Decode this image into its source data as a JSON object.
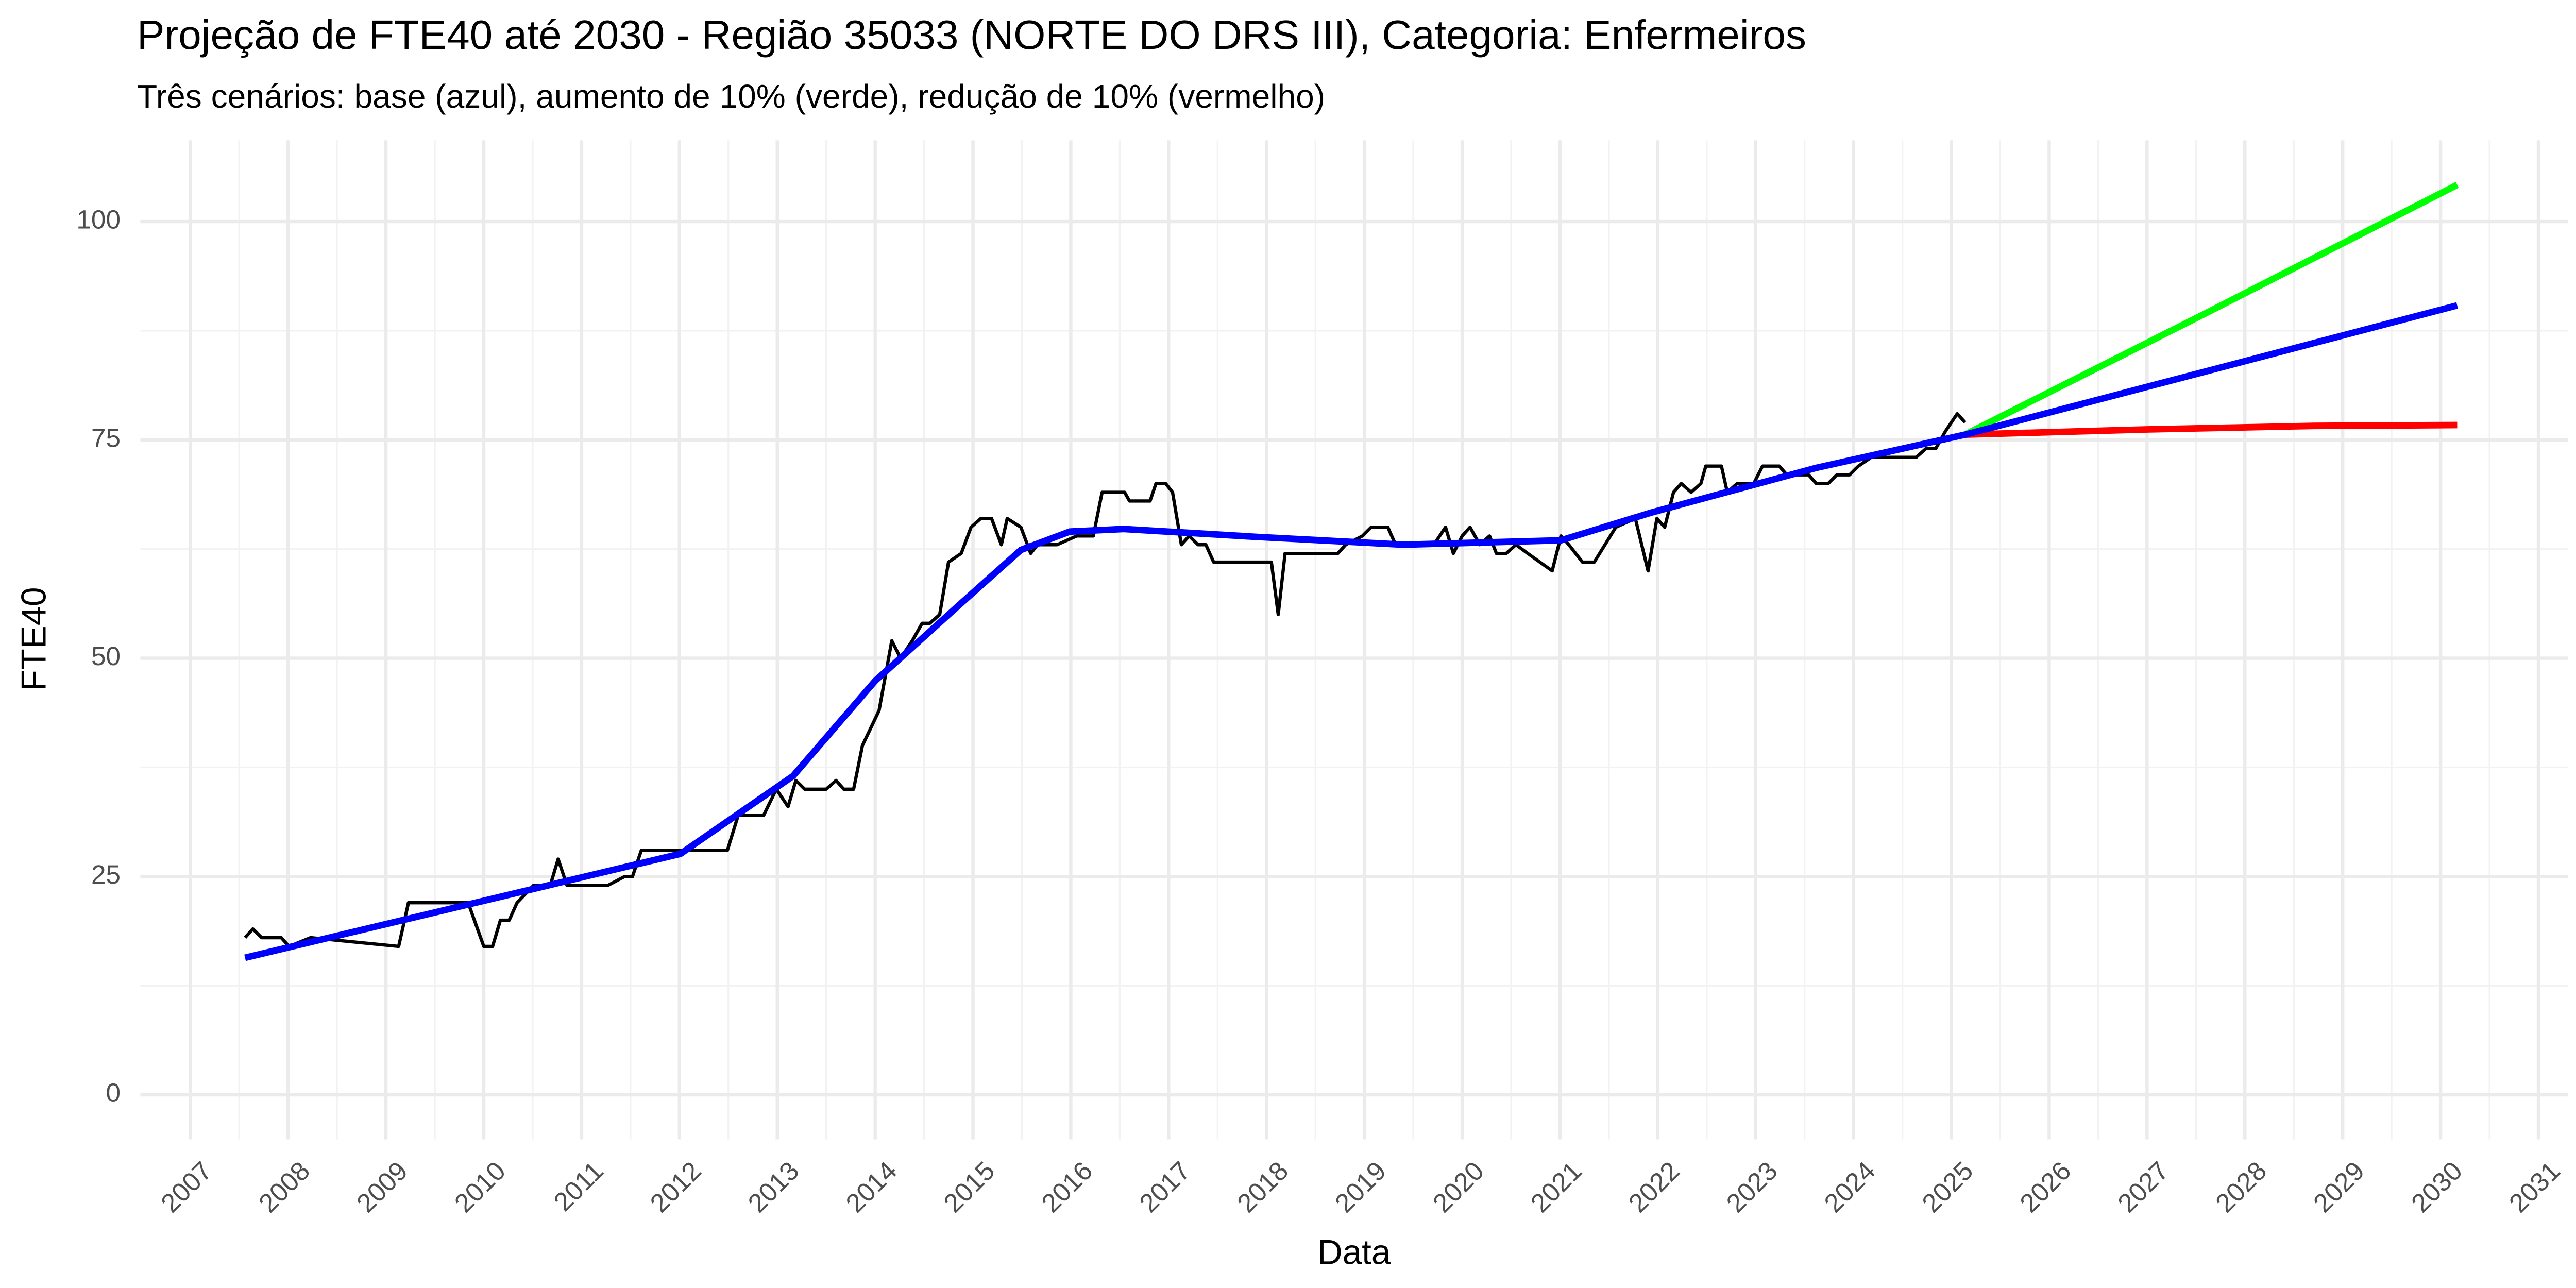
{
  "chart_data": {
    "type": "line",
    "title": "Projeção de FTE40 até 2030 - Região 35033 (NORTE DO DRS III), Categoria: Enfermeiros",
    "subtitle": "Três cenários: base (azul), aumento de 10% (verde), redução de 10% (vermelho)",
    "x_label": "Data",
    "y_label": "FTE40",
    "xlim": [
      2006.49,
      2031.3
    ],
    "ylim": [
      -5.1,
      109.3
    ],
    "xticks": [
      2007,
      2008,
      2009,
      2010,
      2011,
      2012,
      2013,
      2014,
      2015,
      2016,
      2017,
      2018,
      2019,
      2020,
      2021,
      2022,
      2023,
      2024,
      2025,
      2026,
      2027,
      2028,
      2029,
      2030,
      2031
    ],
    "yticks": [
      0,
      25,
      50,
      75,
      100
    ],
    "grid": true,
    "series": [
      {
        "color": "#000000",
        "line_width": 2,
        "x": [
          2007.56,
          2007.64,
          2007.73,
          2007.93,
          2008.01,
          2008.23,
          2009.13,
          2009.23,
          2009.84,
          2010.0,
          2010.09,
          2010.17,
          2010.26,
          2010.34,
          2010.51,
          2010.68,
          2010.76,
          2010.85,
          2011.27,
          2011.44,
          2011.52,
          2011.61,
          2012.49,
          2012.6,
          2012.86,
          2012.99,
          2013.11,
          2013.19,
          2013.28,
          2013.5,
          2013.6,
          2013.68,
          2013.78,
          2013.87,
          2014.04,
          2014.17,
          2014.26,
          2014.38,
          2014.48,
          2014.56,
          2014.66,
          2014.75,
          2014.88,
          2014.98,
          2015.08,
          2015.19,
          2015.29,
          2015.35,
          2015.49,
          2015.59,
          2015.66,
          2015.86,
          2016.06,
          2016.23,
          2016.32,
          2016.55,
          2016.6,
          2016.81,
          2016.87,
          2016.97,
          2017.04,
          2017.13,
          2017.21,
          2017.3,
          2017.38,
          2017.46,
          2018.05,
          2018.12,
          2018.19,
          2018.73,
          2018.81,
          2018.98,
          2019.07,
          2019.24,
          2019.32,
          2019.71,
          2019.83,
          2019.91,
          2020.0,
          2020.08,
          2020.18,
          2020.28,
          2020.35,
          2020.45,
          2020.55,
          2020.67,
          2020.92,
          2021.01,
          2021.09,
          2021.23,
          2021.35,
          2021.46,
          2021.57,
          2021.77,
          2021.9,
          2021.99,
          2022.07,
          2022.16,
          2022.24,
          2022.34,
          2022.44,
          2022.49,
          2022.65,
          2022.71,
          2022.81,
          2022.98,
          2023.07,
          2023.24,
          2023.32,
          2023.54,
          2023.62,
          2023.74,
          2023.83,
          2023.96,
          2024.05,
          2024.18,
          2024.64,
          2024.74,
          2024.84,
          2024.94,
          2025.06,
          2025.14
        ],
        "values": [
          18,
          19,
          18,
          18,
          17,
          18,
          17,
          22,
          22,
          17,
          17,
          20,
          20,
          22,
          24,
          24,
          27,
          24,
          24,
          25,
          25,
          28,
          28,
          32,
          32,
          35,
          33,
          36,
          35,
          35,
          36,
          35,
          35,
          40,
          44,
          52,
          50,
          52,
          54,
          54,
          55,
          61,
          62,
          65,
          66,
          66,
          63,
          66,
          65,
          62,
          63,
          63,
          64,
          64,
          69,
          69,
          68,
          68,
          70,
          70,
          69,
          63,
          64,
          63,
          63,
          61,
          61,
          55,
          62,
          62,
          63,
          64,
          65,
          65,
          63,
          63,
          65,
          62,
          64,
          65,
          63,
          64,
          62,
          62,
          63,
          62,
          60,
          64,
          63,
          61,
          61,
          63,
          65,
          66,
          60,
          66,
          65,
          69,
          70,
          69,
          70,
          72,
          72,
          69,
          70,
          70,
          72,
          72,
          71,
          71,
          70,
          70,
          71,
          71,
          72,
          73,
          73,
          74,
          74,
          76,
          78,
          77
        ]
      },
      {
        "color": "#00ff00",
        "line_width": 4,
        "x": [
          2025.14,
          2027.6,
          2030.17
        ],
        "values": [
          75.6,
          89.5,
          104.2
        ]
      },
      {
        "color": "#ff0000",
        "line_width": 4,
        "x": [
          2025.14,
          2027.0,
          2028.7,
          2030.17
        ],
        "values": [
          75.6,
          76.2,
          76.6,
          76.7
        ]
      },
      {
        "color": "#0000ff",
        "line_width": 4,
        "x": [
          2007.56,
          2012.01,
          2013.16,
          2014.0,
          2014.88,
          2015.49,
          2015.99,
          2016.54,
          2017.89,
          2019.4,
          2021.01,
          2021.94,
          2023.62,
          2025.14,
          2030.17
        ],
        "values": [
          15.7,
          27.6,
          36.5,
          47.4,
          56.3,
          62.4,
          64.5,
          64.8,
          63.9,
          63.0,
          63.5,
          66.7,
          71.8,
          75.6,
          90.4
        ]
      }
    ]
  }
}
